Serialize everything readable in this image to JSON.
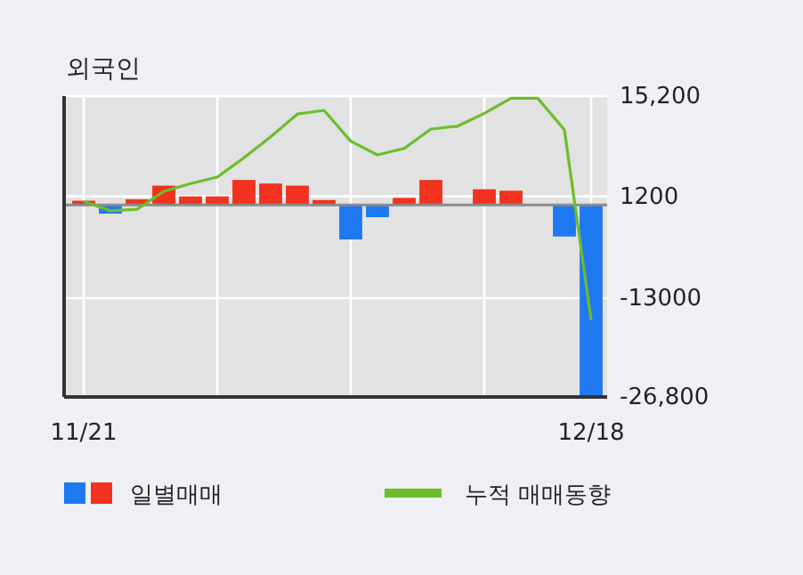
{
  "chart_data": {
    "type": "bar",
    "title": "외국인",
    "categories": [
      "11/21",
      null,
      null,
      null,
      null,
      null,
      null,
      null,
      null,
      null,
      null,
      null,
      null,
      null,
      null,
      null,
      null,
      null,
      null,
      "12/18"
    ],
    "series": [
      {
        "name": "일별매매",
        "colors": [
          "#f0321e",
          "#1e78f0",
          "#f0321e",
          "#f0321e",
          "#f0321e",
          "#f0321e",
          "#f0321e",
          "#f0321e",
          "#f0321e",
          "#f0321e",
          "#1e78f0",
          "#1e78f0",
          "#f0321e",
          "#f0321e",
          "#f0321e",
          "#f0321e",
          "#f0321e",
          "#f0321e",
          "#1e78f0",
          "#1e78f0"
        ],
        "values": [
          600,
          -1200,
          800,
          2700,
          1200,
          1200,
          3500,
          3000,
          2700,
          700,
          -4800,
          -1700,
          1000,
          3500,
          0,
          2200,
          2000,
          0,
          -4400,
          -26800
        ]
      },
      {
        "name": "누적 매매동향",
        "type": "line",
        "color": "#6cbd2a",
        "values": [
          500,
          -800,
          -600,
          1900,
          3000,
          3900,
          6600,
          9500,
          12700,
          13200,
          8900,
          7000,
          7900,
          10600,
          11000,
          12800,
          14900,
          14900,
          10500,
          -16100
        ]
      }
    ],
    "ylim": [
      -26800,
      15200
    ],
    "yticks": [
      {
        "value": 15200,
        "label": "15,200"
      },
      1200,
      -13000,
      {
        "value": -26800,
        "label": "-26,800"
      }
    ],
    "grid": true,
    "legend": "bottom"
  }
}
